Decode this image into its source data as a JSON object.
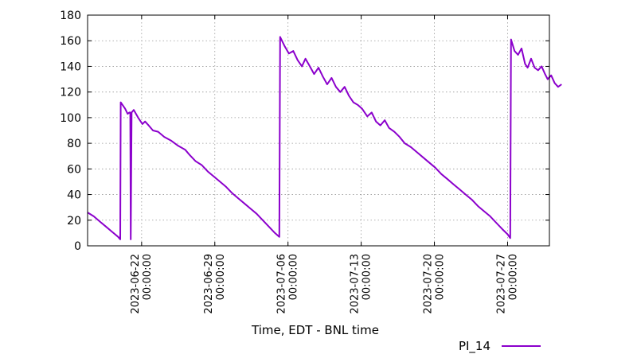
{
  "chart_data": {
    "type": "line",
    "title": "",
    "xlabel": "Time, EDT - BNL time",
    "ylabel": "",
    "ylim": [
      0,
      180
    ],
    "yticks": [
      0,
      20,
      40,
      60,
      80,
      100,
      120,
      140,
      160,
      180
    ],
    "xlim": [
      "2023-06-16 20:00:00",
      "2023-07-31 00:00:00"
    ],
    "xticks": [
      {
        "date": "2023-06-22",
        "time": "00:00:00"
      },
      {
        "date": "2023-06-29",
        "time": "00:00:00"
      },
      {
        "date": "2023-07-06",
        "time": "00:00:00"
      },
      {
        "date": "2023-07-13",
        "time": "00:00:00"
      },
      {
        "date": "2023-07-20",
        "time": "00:00:00"
      },
      {
        "date": "2023-07-27",
        "time": "00:00:00"
      }
    ],
    "grid": true,
    "legend_position": "bottom-right",
    "series": [
      {
        "name": "PI_14",
        "color": "#8b00cc",
        "points": [
          [
            "2023-06-16 20:00",
            26
          ],
          [
            "2023-06-17 10:00",
            23
          ],
          [
            "2023-06-18 00:00",
            19
          ],
          [
            "2023-06-18 14:00",
            15
          ],
          [
            "2023-06-19 04:00",
            11
          ],
          [
            "2023-06-19 18:00",
            7
          ],
          [
            "2023-06-19 23:00",
            5
          ],
          [
            "2023-06-20 00:00",
            112
          ],
          [
            "2023-06-20 10:00",
            107
          ],
          [
            "2023-06-20 16:00",
            103
          ],
          [
            "2023-06-20 20:00",
            104
          ],
          [
            "2023-06-20 22:00",
            104
          ],
          [
            "2023-06-20 23:00",
            5
          ],
          [
            "2023-06-21 01:00",
            104
          ],
          [
            "2023-06-21 06:00",
            106
          ],
          [
            "2023-06-21 16:00",
            100
          ],
          [
            "2023-06-22 02:00",
            95
          ],
          [
            "2023-06-22 08:00",
            97
          ],
          [
            "2023-06-22 16:00",
            94
          ],
          [
            "2023-06-23 02:00",
            90
          ],
          [
            "2023-06-23 14:00",
            89
          ],
          [
            "2023-06-24 04:00",
            85
          ],
          [
            "2023-06-24 20:00",
            82
          ],
          [
            "2023-06-25 12:00",
            78
          ],
          [
            "2023-06-26 04:00",
            75
          ],
          [
            "2023-06-26 14:00",
            71
          ],
          [
            "2023-06-27 04:00",
            66
          ],
          [
            "2023-06-27 18:00",
            63
          ],
          [
            "2023-06-28 08:00",
            58
          ],
          [
            "2023-06-28 22:00",
            54
          ],
          [
            "2023-06-29 12:00",
            50
          ],
          [
            "2023-06-30 02:00",
            46
          ],
          [
            "2023-06-30 16:00",
            41
          ],
          [
            "2023-07-01 06:00",
            37
          ],
          [
            "2023-07-01 20:00",
            33
          ],
          [
            "2023-07-02 10:00",
            29
          ],
          [
            "2023-07-03 00:00",
            25
          ],
          [
            "2023-07-03 14:00",
            20
          ],
          [
            "2023-07-04 04:00",
            15
          ],
          [
            "2023-07-04 18:00",
            10
          ],
          [
            "2023-07-05 04:00",
            7
          ],
          [
            "2023-07-05 06:00",
            163
          ],
          [
            "2023-07-05 16:00",
            156
          ],
          [
            "2023-07-06 02:00",
            150
          ],
          [
            "2023-07-06 12:00",
            152
          ],
          [
            "2023-07-06 22:00",
            145
          ],
          [
            "2023-07-07 08:00",
            140
          ],
          [
            "2023-07-07 16:00",
            146
          ],
          [
            "2023-07-08 02:00",
            140
          ],
          [
            "2023-07-08 12:00",
            134
          ],
          [
            "2023-07-08 22:00",
            139
          ],
          [
            "2023-07-09 08:00",
            132
          ],
          [
            "2023-07-09 18:00",
            126
          ],
          [
            "2023-07-10 04:00",
            131
          ],
          [
            "2023-07-10 14:00",
            124
          ],
          [
            "2023-07-11 00:00",
            120
          ],
          [
            "2023-07-11 10:00",
            124
          ],
          [
            "2023-07-11 20:00",
            117
          ],
          [
            "2023-07-12 06:00",
            112
          ],
          [
            "2023-07-12 16:00",
            110
          ],
          [
            "2023-07-13 02:00",
            107
          ],
          [
            "2023-07-13 14:00",
            101
          ],
          [
            "2023-07-14 00:00",
            104
          ],
          [
            "2023-07-14 10:00",
            97
          ],
          [
            "2023-07-14 20:00",
            94
          ],
          [
            "2023-07-15 06:00",
            98
          ],
          [
            "2023-07-15 16:00",
            92
          ],
          [
            "2023-07-16 04:00",
            89
          ],
          [
            "2023-07-16 16:00",
            85
          ],
          [
            "2023-07-17 04:00",
            80
          ],
          [
            "2023-07-17 18:00",
            77
          ],
          [
            "2023-07-18 08:00",
            73
          ],
          [
            "2023-07-18 22:00",
            69
          ],
          [
            "2023-07-19 12:00",
            65
          ],
          [
            "2023-07-20 02:00",
            61
          ],
          [
            "2023-07-20 16:00",
            56
          ],
          [
            "2023-07-21 06:00",
            52
          ],
          [
            "2023-07-21 20:00",
            48
          ],
          [
            "2023-07-22 10:00",
            44
          ],
          [
            "2023-07-23 00:00",
            40
          ],
          [
            "2023-07-23 14:00",
            36
          ],
          [
            "2023-07-24 04:00",
            31
          ],
          [
            "2023-07-24 18:00",
            27
          ],
          [
            "2023-07-25 08:00",
            23
          ],
          [
            "2023-07-25 22:00",
            18
          ],
          [
            "2023-07-26 12:00",
            13
          ],
          [
            "2023-07-27 00:00",
            9
          ],
          [
            "2023-07-27 06:00",
            6
          ],
          [
            "2023-07-27 08:00",
            161
          ],
          [
            "2023-07-27 16:00",
            152
          ],
          [
            "2023-07-28 00:00",
            149
          ],
          [
            "2023-07-28 08:00",
            154
          ],
          [
            "2023-07-28 16:00",
            142
          ],
          [
            "2023-07-28 22:00",
            139
          ],
          [
            "2023-07-29 06:00",
            146
          ],
          [
            "2023-07-29 14:00",
            139
          ],
          [
            "2023-07-29 22:00",
            137
          ],
          [
            "2023-07-30 06:00",
            140
          ],
          [
            "2023-07-30 14:00",
            134
          ],
          [
            "2023-07-30 20:00",
            130
          ],
          [
            "2023-07-31 04:00",
            133
          ],
          [
            "2023-07-31 12:00",
            127
          ],
          [
            "2023-07-31 20:00",
            124
          ],
          [
            "2023-08-01 04:00",
            126
          ]
        ]
      }
    ]
  }
}
